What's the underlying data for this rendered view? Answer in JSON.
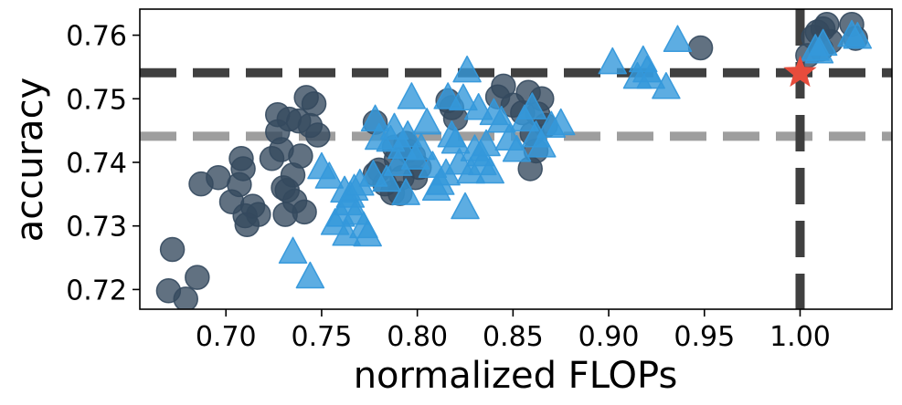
{
  "chart_data": {
    "type": "scatter",
    "xlabel": "normalized FLOPs",
    "ylabel": "accuracy",
    "xlim": [
      0.655,
      1.048
    ],
    "ylim": [
      0.7169,
      0.7641
    ],
    "x_ticks": [
      {
        "value": 0.7,
        "label": "0.70"
      },
      {
        "value": 0.75,
        "label": "0.75"
      },
      {
        "value": 0.8,
        "label": "0.80"
      },
      {
        "value": 0.85,
        "label": "0.85"
      },
      {
        "value": 0.9,
        "label": "0.90"
      },
      {
        "value": 0.95,
        "label": "0.95"
      },
      {
        "value": 1.0,
        "label": "1.00"
      }
    ],
    "y_ticks": [
      {
        "value": 0.72,
        "label": "0.72"
      },
      {
        "value": 0.73,
        "label": "0.73"
      },
      {
        "value": 0.74,
        "label": "0.74"
      },
      {
        "value": 0.75,
        "label": "0.75"
      },
      {
        "value": 0.76,
        "label": "0.76"
      }
    ],
    "grid": false,
    "reference_lines": [
      {
        "orientation": "horizontal",
        "value": 0.7541,
        "color": "#404040",
        "style": "dashed"
      },
      {
        "orientation": "horizontal",
        "value": 0.7441,
        "color": "#9e9e9e",
        "style": "dashed"
      },
      {
        "orientation": "vertical",
        "value": 1.0,
        "color": "#404040",
        "style": "dashed"
      }
    ],
    "series": [
      {
        "marker": "circle",
        "color": "#34495e",
        "points": [
          [
            0.67,
            0.7198
          ],
          [
            0.679,
            0.7185
          ],
          [
            0.685,
            0.7219
          ],
          [
            0.672,
            0.7263
          ],
          [
            0.687,
            0.7366
          ],
          [
            0.696,
            0.7376
          ],
          [
            0.703,
            0.7338
          ],
          [
            0.707,
            0.7365
          ],
          [
            0.708,
            0.7406
          ],
          [
            0.709,
            0.739
          ],
          [
            0.71,
            0.7316
          ],
          [
            0.711,
            0.7302
          ],
          [
            0.714,
            0.7331
          ],
          [
            0.717,
            0.7318
          ],
          [
            0.724,
            0.7406
          ],
          [
            0.727,
            0.7448
          ],
          [
            0.727,
            0.7475
          ],
          [
            0.729,
            0.742
          ],
          [
            0.73,
            0.736
          ],
          [
            0.731,
            0.7318
          ],
          [
            0.732,
            0.7356
          ],
          [
            0.733,
            0.7468
          ],
          [
            0.735,
            0.738
          ],
          [
            0.736,
            0.7339
          ],
          [
            0.738,
            0.7465
          ],
          [
            0.739,
            0.741
          ],
          [
            0.741,
            0.7322
          ],
          [
            0.742,
            0.7502
          ],
          [
            0.744,
            0.7458
          ],
          [
            0.746,
            0.7492
          ],
          [
            0.748,
            0.7443
          ],
          [
            0.778,
            0.7463
          ],
          [
            0.778,
            0.7382
          ],
          [
            0.78,
            0.7388
          ],
          [
            0.783,
            0.7366
          ],
          [
            0.787,
            0.7352
          ],
          [
            0.788,
            0.7424
          ],
          [
            0.789,
            0.7405
          ],
          [
            0.791,
            0.7351
          ],
          [
            0.792,
            0.7376
          ],
          [
            0.794,
            0.743
          ],
          [
            0.795,
            0.7418
          ],
          [
            0.798,
            0.741
          ],
          [
            0.799,
            0.7376
          ],
          [
            0.801,
            0.7392
          ],
          [
            0.816,
            0.7497
          ],
          [
            0.818,
            0.7486
          ],
          [
            0.82,
            0.7469
          ],
          [
            0.842,
            0.7503
          ],
          [
            0.845,
            0.752
          ],
          [
            0.85,
            0.749
          ],
          [
            0.855,
            0.7478
          ],
          [
            0.858,
            0.751
          ],
          [
            0.859,
            0.739
          ],
          [
            0.86,
            0.7445
          ],
          [
            0.862,
            0.7418
          ],
          [
            0.863,
            0.7476
          ],
          [
            0.865,
            0.75
          ],
          [
            0.867,
            0.7458
          ],
          [
            0.948,
            0.758
          ],
          [
            1.004,
            0.7568
          ],
          [
            1.007,
            0.7597
          ],
          [
            1.009,
            0.7605
          ],
          [
            1.011,
            0.7578
          ],
          [
            1.012,
            0.761
          ],
          [
            1.014,
            0.7617
          ],
          [
            1.016,
            0.759
          ],
          [
            1.027,
            0.7617
          ],
          [
            1.029,
            0.7595
          ]
        ]
      },
      {
        "marker": "triangle",
        "color": "#3498db",
        "points": [
          [
            0.735,
            0.7257
          ],
          [
            0.744,
            0.7218
          ],
          [
            0.75,
            0.739
          ],
          [
            0.754,
            0.7375
          ],
          [
            0.757,
            0.7302
          ],
          [
            0.76,
            0.7315
          ],
          [
            0.762,
            0.7353
          ],
          [
            0.763,
            0.7285
          ],
          [
            0.764,
            0.7333
          ],
          [
            0.765,
            0.7345
          ],
          [
            0.767,
            0.7356
          ],
          [
            0.768,
            0.7318
          ],
          [
            0.77,
            0.7364
          ],
          [
            0.772,
            0.7297
          ],
          [
            0.774,
            0.7284
          ],
          [
            0.777,
            0.7378
          ],
          [
            0.778,
            0.7465
          ],
          [
            0.78,
            0.7436
          ],
          [
            0.784,
            0.737
          ],
          [
            0.786,
            0.7433
          ],
          [
            0.788,
            0.7452
          ],
          [
            0.79,
            0.7395
          ],
          [
            0.792,
            0.7422
          ],
          [
            0.794,
            0.7349
          ],
          [
            0.795,
            0.744
          ],
          [
            0.797,
            0.75
          ],
          [
            0.799,
            0.7405
          ],
          [
            0.802,
            0.742
          ],
          [
            0.805,
            0.746
          ],
          [
            0.808,
            0.7392
          ],
          [
            0.81,
            0.7356
          ],
          [
            0.812,
            0.7365
          ],
          [
            0.815,
            0.738
          ],
          [
            0.816,
            0.75
          ],
          [
            0.818,
            0.744
          ],
          [
            0.82,
            0.743
          ],
          [
            0.822,
            0.7397
          ],
          [
            0.824,
            0.7498
          ],
          [
            0.825,
            0.7327
          ],
          [
            0.826,
            0.7542
          ],
          [
            0.828,
            0.7383
          ],
          [
            0.83,
            0.7418
          ],
          [
            0.832,
            0.7483
          ],
          [
            0.833,
            0.741
          ],
          [
            0.834,
            0.7396
          ],
          [
            0.836,
            0.7426
          ],
          [
            0.838,
            0.7383
          ],
          [
            0.84,
            0.7475
          ],
          [
            0.844,
            0.7463
          ],
          [
            0.848,
            0.7435
          ],
          [
            0.852,
            0.7417
          ],
          [
            0.856,
            0.7465
          ],
          [
            0.86,
            0.7484
          ],
          [
            0.862,
            0.744
          ],
          [
            0.865,
            0.7424
          ],
          [
            0.87,
            0.7455
          ],
          [
            0.875,
            0.7459
          ],
          [
            0.902,
            0.7555
          ],
          [
            0.915,
            0.7532
          ],
          [
            0.918,
            0.7558
          ],
          [
            0.92,
            0.7542
          ],
          [
            0.922,
            0.7532
          ],
          [
            0.93,
            0.7516
          ],
          [
            0.936,
            0.759
          ],
          [
            1.008,
            0.7576
          ],
          [
            1.01,
            0.7572
          ],
          [
            1.012,
            0.7584
          ],
          [
            1.027,
            0.7598
          ],
          [
            1.03,
            0.7595
          ]
        ]
      }
    ],
    "highlight": {
      "marker": "star",
      "color": "#e74c3c",
      "x": 1.0,
      "y": 0.7541
    }
  }
}
